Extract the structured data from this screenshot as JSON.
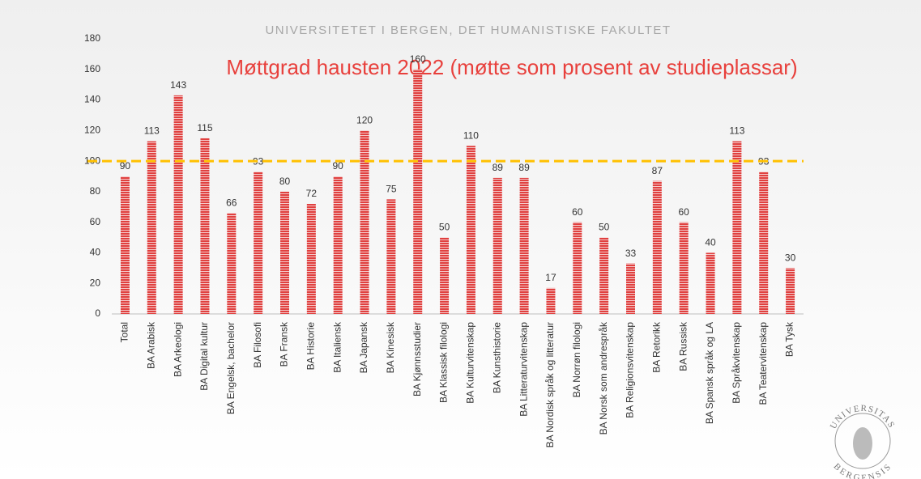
{
  "header": "UNIVERSITETET I BERGEN, DET HUMANISTISKE FAKULTET",
  "logo": {
    "top": "UNIVERSITAS",
    "bottom": "BERGENSIS"
  },
  "chart_data": {
    "type": "bar",
    "title": "Møttgrad hausten 2022 (møtte som prosent av studieplassar)",
    "categories": [
      "Total",
      "BA Arabisk",
      "BA Arkeologi",
      "BA Digital kultur",
      "BA Engelsk, bachelor",
      "BA Filosofi",
      "BA Fransk",
      "BA Historie",
      "BA Italiensk",
      "BA Japansk",
      "BA Kinesisk",
      "BA Kjønnsstudier",
      "BA Klassisk filologi",
      "BA Kulturvitenskap",
      "BA Kunsthistorie",
      "BA Litteraturvitenskap",
      "BA Nordisk språk og litteratur",
      "BA Norrøn filologi",
      "BA Norsk som andrespråk",
      "BA Religionsvitenskap",
      "BA Retorikk",
      "BA Russisk",
      "BA Spansk språk og LA",
      "BA Språkvitenskap",
      "BA Teatervitenskap",
      "BA Tysk"
    ],
    "values": [
      90,
      113,
      143,
      115,
      66,
      93,
      80,
      72,
      90,
      120,
      75,
      160,
      50,
      110,
      89,
      89,
      17,
      60,
      50,
      33,
      87,
      60,
      40,
      113,
      93,
      30
    ],
    "color": "#e0403f",
    "reference_line": 100,
    "reference_color": "#ffc000",
    "ylim": [
      0,
      180
    ],
    "yticks": [
      0,
      20,
      40,
      60,
      80,
      100,
      120,
      140,
      160,
      180
    ],
    "grid": false
  }
}
